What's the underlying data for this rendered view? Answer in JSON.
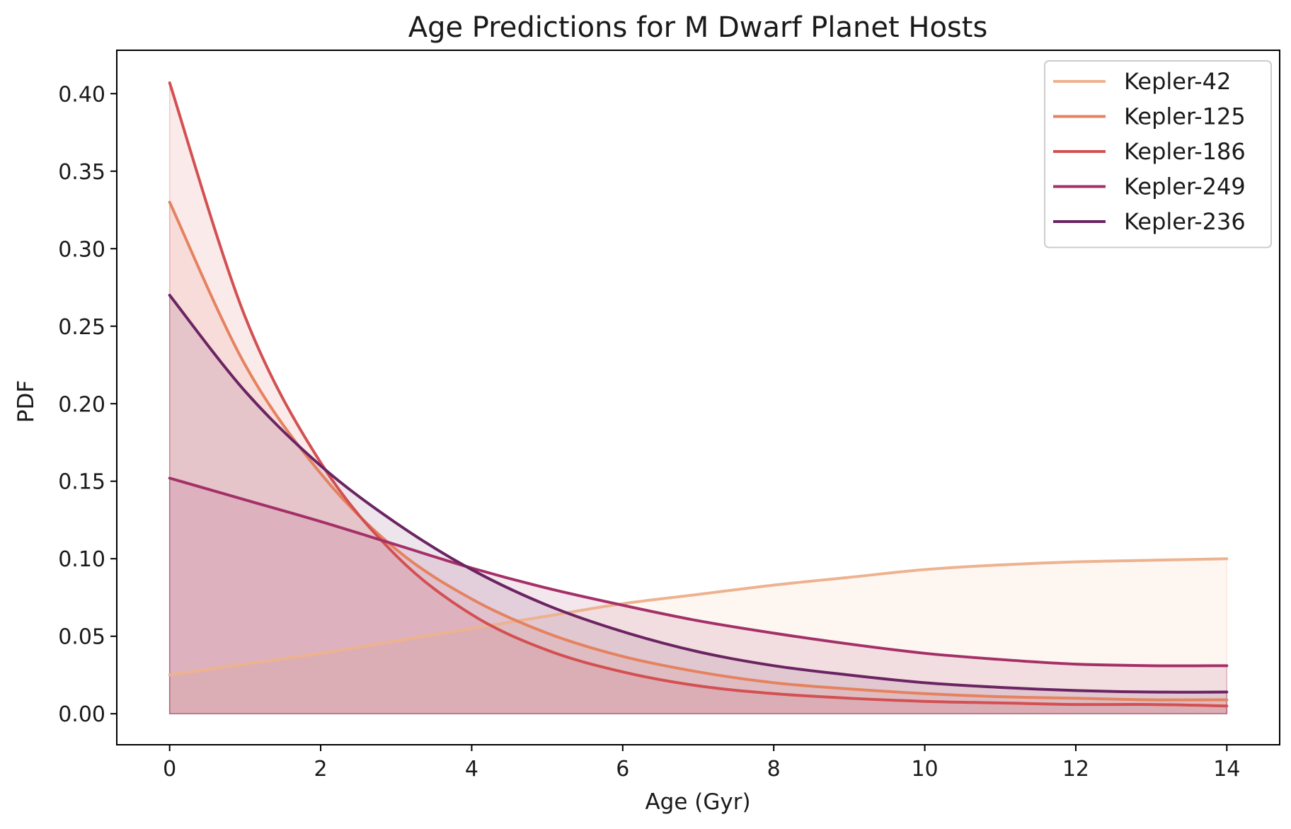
{
  "chart_data": {
    "type": "line",
    "title": "Age Predictions for M Dwarf Planet Hosts",
    "xlabel": "Age (Gyr)",
    "ylabel": "PDF",
    "xlim": [
      -0.7,
      14.7
    ],
    "ylim": [
      -0.02,
      0.428
    ],
    "xticks": [
      0,
      2,
      4,
      6,
      8,
      10,
      12,
      14
    ],
    "xtick_labels": [
      "0",
      "2",
      "4",
      "6",
      "8",
      "10",
      "12",
      "14"
    ],
    "yticks": [
      0.0,
      0.05,
      0.1,
      0.15,
      0.2,
      0.25,
      0.3,
      0.35,
      0.4
    ],
    "ytick_labels": [
      "0.00",
      "0.05",
      "0.10",
      "0.15",
      "0.20",
      "0.25",
      "0.30",
      "0.35",
      "0.40"
    ],
    "grid": false,
    "legend_position": "top-right",
    "filled_under_curves": true,
    "x": [
      0,
      1,
      2,
      3,
      4,
      5,
      6,
      7,
      8,
      9,
      10,
      11,
      12,
      13,
      14
    ],
    "series": [
      {
        "name": "Kepler-42",
        "color": "#edb28f",
        "values": [
          0.025,
          0.032,
          0.039,
          0.047,
          0.055,
          0.063,
          0.071,
          0.077,
          0.083,
          0.088,
          0.093,
          0.096,
          0.098,
          0.099,
          0.1
        ]
      },
      {
        "name": "Kepler-125",
        "color": "#e5825f",
        "values": [
          0.33,
          0.225,
          0.155,
          0.106,
          0.074,
          0.052,
          0.037,
          0.027,
          0.02,
          0.016,
          0.013,
          0.011,
          0.01,
          0.009,
          0.009
        ]
      },
      {
        "name": "Kepler-186",
        "color": "#d35052",
        "values": [
          0.407,
          0.256,
          0.162,
          0.102,
          0.064,
          0.041,
          0.027,
          0.018,
          0.013,
          0.01,
          0.008,
          0.007,
          0.006,
          0.006,
          0.005
        ]
      },
      {
        "name": "Kepler-249",
        "color": "#a53068",
        "values": [
          0.152,
          0.138,
          0.124,
          0.109,
          0.094,
          0.081,
          0.07,
          0.06,
          0.052,
          0.045,
          0.039,
          0.035,
          0.032,
          0.031,
          0.031
        ]
      },
      {
        "name": "Kepler-236",
        "color": "#6b2462",
        "values": [
          0.27,
          0.208,
          0.16,
          0.123,
          0.093,
          0.07,
          0.053,
          0.04,
          0.031,
          0.025,
          0.02,
          0.017,
          0.015,
          0.014,
          0.014
        ]
      }
    ]
  }
}
